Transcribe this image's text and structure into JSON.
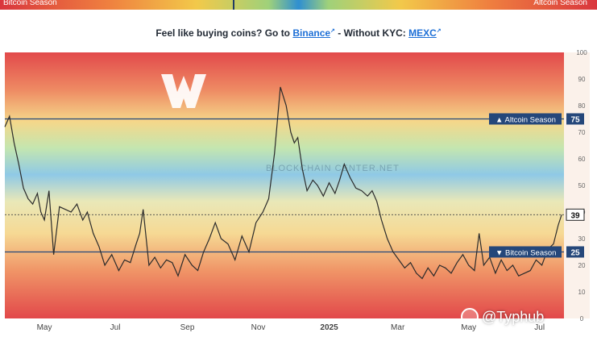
{
  "top_bar": {
    "left_label": "Bitcoin Season",
    "right_label": "Altcoin Season"
  },
  "promo": {
    "prefix": "Feel like buying coins? Go to ",
    "link1": "Binance",
    "link1_sup": "↗",
    "middle": " - Without KYC: ",
    "link2": "MEXC",
    "link2_sup": "↗"
  },
  "logo_text": "BLOCKCHAIN CENTER.NET",
  "watermark": "@Typhub",
  "colors": {
    "line": "#2b2b2b",
    "tag_bg": "#25477a",
    "tag_text": "#ffffff",
    "threshold_line": "#25477a"
  },
  "chart_data": {
    "type": "line",
    "yaxis_position": "right",
    "ylim": [
      0,
      100
    ],
    "yticks": [
      0,
      10,
      20,
      30,
      40,
      50,
      60,
      70,
      80,
      90,
      100
    ],
    "xlim": [
      "2024-03-28",
      "2025-07-22"
    ],
    "xticks": [
      {
        "label": "May",
        "date": "2024-05-01"
      },
      {
        "label": "Jul",
        "date": "2024-07-01"
      },
      {
        "label": "Sep",
        "date": "2024-09-01"
      },
      {
        "label": "Nov",
        "date": "2024-11-01"
      },
      {
        "label": "2025",
        "date": "2025-01-01"
      },
      {
        "label": "Mar",
        "date": "2025-03-01"
      },
      {
        "label": "May",
        "date": "2025-05-01"
      },
      {
        "label": "Jul",
        "date": "2025-07-01"
      }
    ],
    "thresholds": [
      {
        "label": "Altcoin Season",
        "value": 75,
        "value_label": "75",
        "arrow": "▲"
      },
      {
        "label": "Bitcoin Season",
        "value": 25,
        "value_label": "25",
        "arrow": "▼"
      }
    ],
    "current": {
      "value": 39,
      "value_label": "39"
    },
    "series": [
      {
        "x": [
          "2024-03-28",
          "2024-04-01",
          "2024-04-05",
          "2024-04-09",
          "2024-04-13",
          "2024-04-17",
          "2024-04-21",
          "2024-04-25",
          "2024-04-28",
          "2024-05-01",
          "2024-05-05",
          "2024-05-09",
          "2024-05-14",
          "2024-05-19",
          "2024-05-24",
          "2024-05-29",
          "2024-06-03",
          "2024-06-07",
          "2024-06-12",
          "2024-06-17",
          "2024-06-22",
          "2024-06-28",
          "2024-07-04",
          "2024-07-09",
          "2024-07-14",
          "2024-07-19",
          "2024-07-22",
          "2024-07-25",
          "2024-07-30",
          "2024-08-04",
          "2024-08-09",
          "2024-08-14",
          "2024-08-19",
          "2024-08-24",
          "2024-08-30",
          "2024-09-05",
          "2024-09-10",
          "2024-09-15",
          "2024-09-20",
          "2024-09-25",
          "2024-09-30",
          "2024-10-06",
          "2024-10-12",
          "2024-10-18",
          "2024-10-24",
          "2024-10-30",
          "2024-11-05",
          "2024-11-10",
          "2024-11-15",
          "2024-11-20",
          "2024-11-25",
          "2024-11-29",
          "2024-12-02",
          "2024-12-05",
          "2024-12-09",
          "2024-12-13",
          "2024-12-18",
          "2024-12-22",
          "2024-12-27",
          "2025-01-01",
          "2025-01-06",
          "2025-01-10",
          "2025-01-14",
          "2025-01-19",
          "2025-01-24",
          "2025-01-29",
          "2025-02-03",
          "2025-02-07",
          "2025-02-11",
          "2025-02-15",
          "2025-02-20",
          "2025-02-25",
          "2025-03-02",
          "2025-03-07",
          "2025-03-12",
          "2025-03-17",
          "2025-03-22",
          "2025-03-27",
          "2025-04-01",
          "2025-04-06",
          "2025-04-11",
          "2025-04-16",
          "2025-04-21",
          "2025-04-26",
          "2025-05-01",
          "2025-05-06",
          "2025-05-10",
          "2025-05-14",
          "2025-05-19",
          "2025-05-24",
          "2025-05-29",
          "2025-06-03",
          "2025-06-08",
          "2025-06-13",
          "2025-06-18",
          "2025-06-23",
          "2025-06-28",
          "2025-07-03",
          "2025-07-08",
          "2025-07-13",
          "2025-07-17",
          "2025-07-20"
        ],
        "y": [
          72,
          76,
          66,
          58,
          49,
          45,
          43,
          47,
          40,
          37,
          48,
          24,
          42,
          41,
          40,
          43,
          37,
          40,
          32,
          27,
          20,
          24,
          18,
          22,
          21,
          28,
          32,
          41,
          20,
          23,
          19,
          22,
          21,
          16,
          24,
          20,
          18,
          25,
          30,
          36,
          30,
          28,
          22,
          31,
          25,
          36,
          40,
          45,
          62,
          87,
          80,
          70,
          66,
          68,
          56,
          48,
          52,
          50,
          46,
          51,
          47,
          52,
          58,
          53,
          49,
          48,
          46,
          48,
          44,
          37,
          30,
          25,
          22,
          19,
          21,
          17,
          15,
          19,
          16,
          20,
          19,
          17,
          21,
          24,
          20,
          18,
          32,
          20,
          23,
          17,
          22,
          18,
          20,
          16,
          17,
          18,
          22,
          20,
          26,
          28,
          35,
          39
        ]
      }
    ]
  }
}
